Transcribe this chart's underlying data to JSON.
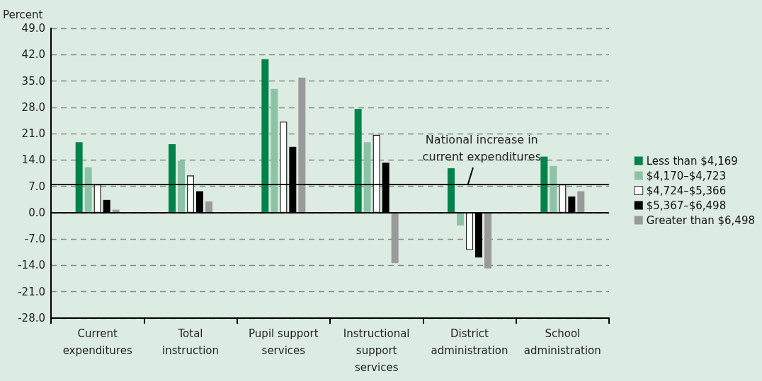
{
  "chart_data": {
    "type": "bar",
    "ylabel": "Percent",
    "categories": [
      "Current\nexpenditures",
      "Total\ninstruction",
      "Pupil support\nservices",
      "Instructional\nsupport\nservices",
      "District\nadministration",
      "School\nadministration"
    ],
    "series": [
      {
        "name": "Less than $4,169",
        "color": "#00834a",
        "values": [
          18.7,
          18.2,
          40.8,
          27.6,
          11.8,
          14.9
        ]
      },
      {
        "name": "$4,170–$4,723",
        "color": "#8cc3a6",
        "values": [
          12.1,
          13.8,
          32.9,
          18.7,
          -3.4,
          12.4
        ]
      },
      {
        "name": "$4,724–$5,366",
        "color": "#ffffff",
        "values": [
          7.5,
          9.9,
          24.2,
          20.7,
          -9.9,
          7.5
        ]
      },
      {
        "name": "$5,367–$6,498",
        "color": "#000000",
        "values": [
          3.4,
          5.7,
          17.5,
          13.3,
          -11.9,
          4.3
        ]
      },
      {
        "name": "Greater than $6,498",
        "color": "#9a9a9a",
        "values": [
          0.8,
          3.0,
          35.9,
          -13.4,
          -14.8,
          5.7
        ]
      }
    ],
    "ylim": [
      -28,
      49
    ],
    "yticks": [
      {
        "value": -28,
        "label": "-28.0"
      },
      {
        "value": -21,
        "label": "-21.0"
      },
      {
        "value": -14,
        "label": "-14.0"
      },
      {
        "value": -7,
        "label": "-7.0"
      },
      {
        "value": 0,
        "label": "0.0"
      },
      {
        "value": 7,
        "label": "7.0"
      },
      {
        "value": 14,
        "label": "14.0"
      },
      {
        "value": 21,
        "label": "21.0"
      },
      {
        "value": 28,
        "label": "28.0"
      },
      {
        "value": 35,
        "label": "35.0"
      },
      {
        "value": 42,
        "label": "42.0"
      },
      {
        "value": 49,
        "label": "49.0"
      }
    ],
    "ref_lines": [
      {
        "axis": "y",
        "value": 7.5,
        "label": "National increase in\ncurrent expenditures"
      }
    ],
    "grid": "y",
    "legend": "right"
  }
}
